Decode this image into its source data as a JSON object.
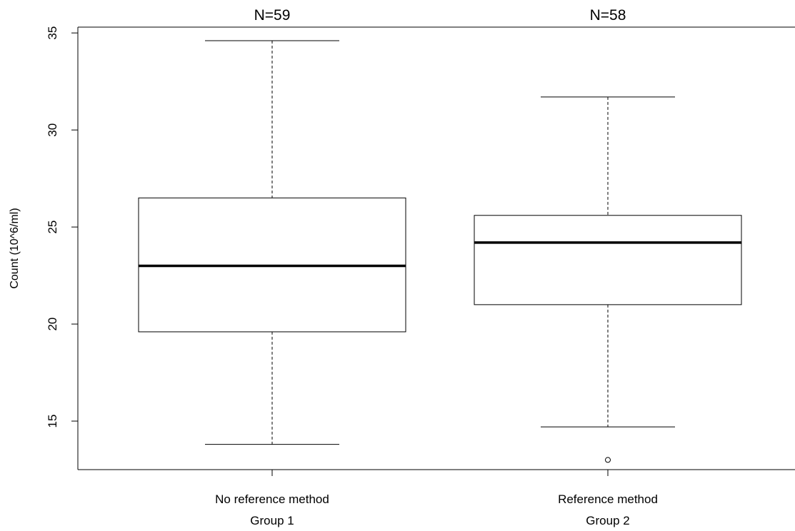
{
  "chart_data": {
    "type": "box",
    "ylabel": "Count  (10^6/ml)",
    "ylim": [
      12.5,
      35.3
    ],
    "yticks": [
      15,
      20,
      25,
      30,
      35
    ],
    "grid": false,
    "categories": [
      {
        "label": "No reference method",
        "group_label": "Group 1",
        "n_label": "N=59",
        "whisker_low": 13.8,
        "q1": 19.6,
        "median": 23.0,
        "q3": 26.5,
        "whisker_high": 34.6,
        "outliers": []
      },
      {
        "label": "Reference method",
        "group_label": "Group 2",
        "n_label": "N=58",
        "whisker_low": 14.7,
        "q1": 21.0,
        "median": 24.2,
        "q3": 25.6,
        "whisker_high": 31.7,
        "outliers": [
          13.0
        ]
      }
    ]
  }
}
